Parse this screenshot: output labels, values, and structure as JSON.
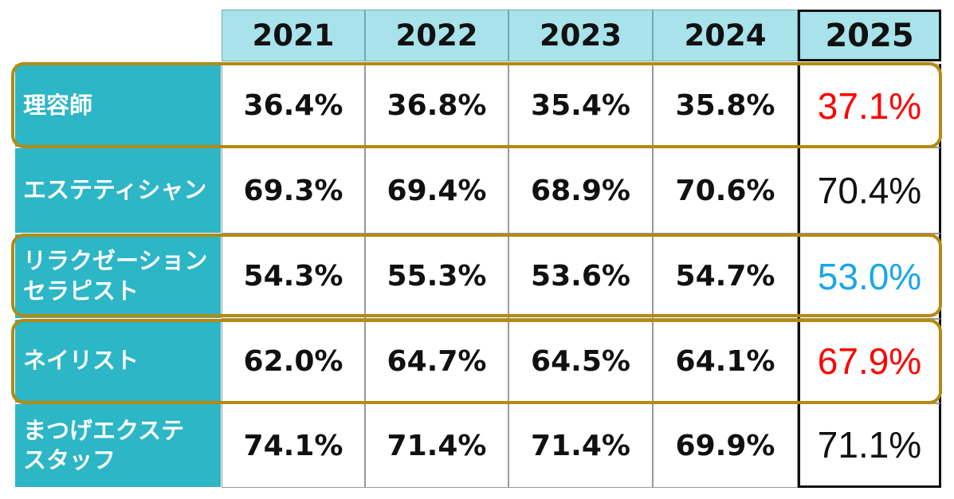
{
  "chart_data": {
    "type": "table",
    "columns": [
      "2021",
      "2022",
      "2023",
      "2024",
      "2025"
    ],
    "rows": [
      {
        "label": "理容師",
        "values": [
          "36.4%",
          "36.8%",
          "35.4%",
          "35.8%",
          "37.1%"
        ],
        "highlight_2025_color": "#ff0000"
      },
      {
        "label": "エステティシャン",
        "values": [
          "69.3%",
          "69.4%",
          "68.9%",
          "70.6%",
          "70.4%"
        ],
        "highlight_2025_color": "#111111"
      },
      {
        "label": "リラクゼーション\nセラピスト",
        "values": [
          "54.3%",
          "55.3%",
          "53.6%",
          "54.7%",
          "53.0%"
        ],
        "highlight_2025_color": "#1aa6e8"
      },
      {
        "label": "ネイリスト",
        "values": [
          "62.0%",
          "64.7%",
          "64.5%",
          "64.1%",
          "67.9%"
        ],
        "highlight_2025_color": "#ff0000"
      },
      {
        "label": "まつげエクステ\nスタッフ",
        "values": [
          "74.1%",
          "71.4%",
          "71.4%",
          "69.9%",
          "71.1%"
        ],
        "highlight_2025_color": "#111111"
      }
    ],
    "highlighted_rows": [
      "理容師",
      "リラクゼーション\nセラピスト",
      "ネイリスト"
    ],
    "colors": {
      "header_bg": "#a8e2ea",
      "category_bg": "#2cb6c6",
      "highlight_border": "#b38a12",
      "increase": "#ff0000",
      "decrease": "#1aa6e8"
    }
  }
}
